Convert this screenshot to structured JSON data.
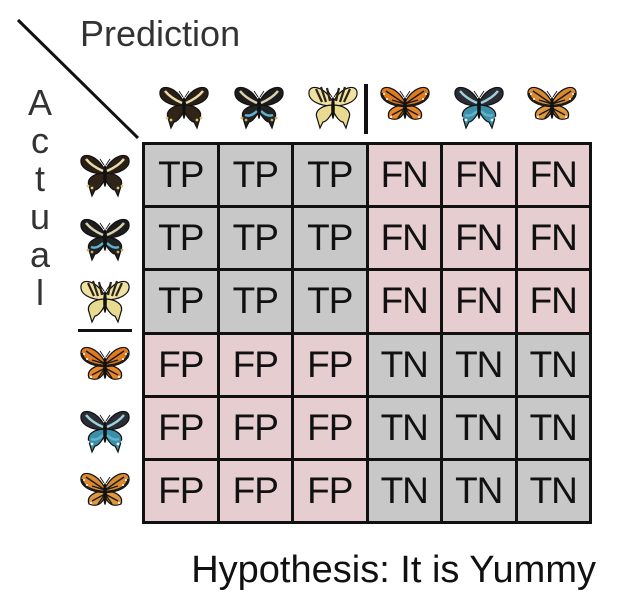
{
  "header": {
    "prediction_label": "Prediction"
  },
  "side": {
    "actual_label": "Actual"
  },
  "legend": {
    "hypothesis": "Hypothesis: It is Yummy"
  },
  "colors": {
    "true_cell": "#c8c8c8",
    "false_cell": "#e6cdcf",
    "grid_line": "#111111"
  },
  "butterflies": {
    "columns": [
      {
        "id": "c1",
        "kind": "swallowtail-dark"
      },
      {
        "id": "c2",
        "kind": "swallowtail-black"
      },
      {
        "id": "c3",
        "kind": "swallowtail-yellow"
      },
      {
        "id": "c4",
        "kind": "monarch"
      },
      {
        "id": "c5",
        "kind": "blue-swallowtail"
      },
      {
        "id": "c6",
        "kind": "viceroy"
      }
    ],
    "rows": [
      {
        "id": "r1",
        "kind": "swallowtail-dark"
      },
      {
        "id": "r2",
        "kind": "swallowtail-black"
      },
      {
        "id": "r3",
        "kind": "swallowtail-yellow"
      },
      {
        "id": "r4",
        "kind": "monarch"
      },
      {
        "id": "r5",
        "kind": "blue-swallowtail"
      },
      {
        "id": "r6",
        "kind": "viceroy"
      }
    ]
  },
  "matrix": [
    [
      "TP",
      "TP",
      "TP",
      "FN",
      "FN",
      "FN"
    ],
    [
      "TP",
      "TP",
      "TP",
      "FN",
      "FN",
      "FN"
    ],
    [
      "TP",
      "TP",
      "TP",
      "FN",
      "FN",
      "FN"
    ],
    [
      "FP",
      "FP",
      "FP",
      "TN",
      "TN",
      "TN"
    ],
    [
      "FP",
      "FP",
      "FP",
      "TN",
      "TN",
      "TN"
    ],
    [
      "FP",
      "FP",
      "FP",
      "TN",
      "TN",
      "TN"
    ]
  ]
}
